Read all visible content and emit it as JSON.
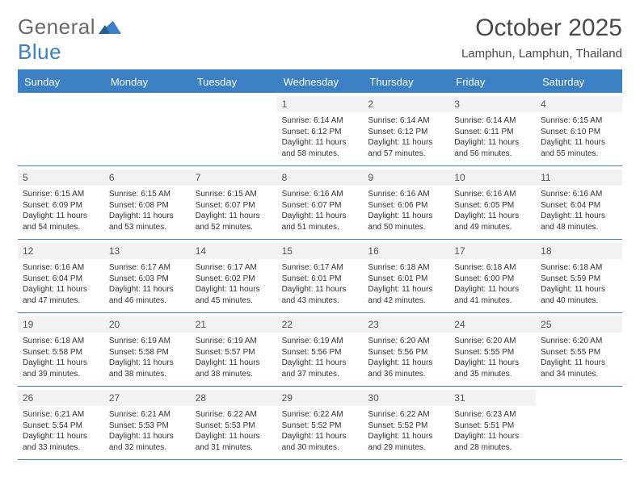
{
  "logo": {
    "word1": "General",
    "word2": "Blue"
  },
  "title": "October 2025",
  "subtitle": "Lamphun, Lamphun, Thailand",
  "colors": {
    "accent": "#3b7fc4",
    "row_alt": "#f2f2f2",
    "text": "#333333"
  },
  "day_headers": [
    "Sunday",
    "Monday",
    "Tuesday",
    "Wednesday",
    "Thursday",
    "Friday",
    "Saturday"
  ],
  "weeks": [
    [
      {
        "n": "",
        "sr": "",
        "ss": "",
        "dl": ""
      },
      {
        "n": "",
        "sr": "",
        "ss": "",
        "dl": ""
      },
      {
        "n": "",
        "sr": "",
        "ss": "",
        "dl": ""
      },
      {
        "n": "1",
        "sr": "6:14 AM",
        "ss": "6:12 PM",
        "dl": "11 hours and 58 minutes."
      },
      {
        "n": "2",
        "sr": "6:14 AM",
        "ss": "6:12 PM",
        "dl": "11 hours and 57 minutes."
      },
      {
        "n": "3",
        "sr": "6:14 AM",
        "ss": "6:11 PM",
        "dl": "11 hours and 56 minutes."
      },
      {
        "n": "4",
        "sr": "6:15 AM",
        "ss": "6:10 PM",
        "dl": "11 hours and 55 minutes."
      }
    ],
    [
      {
        "n": "5",
        "sr": "6:15 AM",
        "ss": "6:09 PM",
        "dl": "11 hours and 54 minutes."
      },
      {
        "n": "6",
        "sr": "6:15 AM",
        "ss": "6:08 PM",
        "dl": "11 hours and 53 minutes."
      },
      {
        "n": "7",
        "sr": "6:15 AM",
        "ss": "6:07 PM",
        "dl": "11 hours and 52 minutes."
      },
      {
        "n": "8",
        "sr": "6:16 AM",
        "ss": "6:07 PM",
        "dl": "11 hours and 51 minutes."
      },
      {
        "n": "9",
        "sr": "6:16 AM",
        "ss": "6:06 PM",
        "dl": "11 hours and 50 minutes."
      },
      {
        "n": "10",
        "sr": "6:16 AM",
        "ss": "6:05 PM",
        "dl": "11 hours and 49 minutes."
      },
      {
        "n": "11",
        "sr": "6:16 AM",
        "ss": "6:04 PM",
        "dl": "11 hours and 48 minutes."
      }
    ],
    [
      {
        "n": "12",
        "sr": "6:16 AM",
        "ss": "6:04 PM",
        "dl": "11 hours and 47 minutes."
      },
      {
        "n": "13",
        "sr": "6:17 AM",
        "ss": "6:03 PM",
        "dl": "11 hours and 46 minutes."
      },
      {
        "n": "14",
        "sr": "6:17 AM",
        "ss": "6:02 PM",
        "dl": "11 hours and 45 minutes."
      },
      {
        "n": "15",
        "sr": "6:17 AM",
        "ss": "6:01 PM",
        "dl": "11 hours and 43 minutes."
      },
      {
        "n": "16",
        "sr": "6:18 AM",
        "ss": "6:01 PM",
        "dl": "11 hours and 42 minutes."
      },
      {
        "n": "17",
        "sr": "6:18 AM",
        "ss": "6:00 PM",
        "dl": "11 hours and 41 minutes."
      },
      {
        "n": "18",
        "sr": "6:18 AM",
        "ss": "5:59 PM",
        "dl": "11 hours and 40 minutes."
      }
    ],
    [
      {
        "n": "19",
        "sr": "6:18 AM",
        "ss": "5:58 PM",
        "dl": "11 hours and 39 minutes."
      },
      {
        "n": "20",
        "sr": "6:19 AM",
        "ss": "5:58 PM",
        "dl": "11 hours and 38 minutes."
      },
      {
        "n": "21",
        "sr": "6:19 AM",
        "ss": "5:57 PM",
        "dl": "11 hours and 38 minutes."
      },
      {
        "n": "22",
        "sr": "6:19 AM",
        "ss": "5:56 PM",
        "dl": "11 hours and 37 minutes."
      },
      {
        "n": "23",
        "sr": "6:20 AM",
        "ss": "5:56 PM",
        "dl": "11 hours and 36 minutes."
      },
      {
        "n": "24",
        "sr": "6:20 AM",
        "ss": "5:55 PM",
        "dl": "11 hours and 35 minutes."
      },
      {
        "n": "25",
        "sr": "6:20 AM",
        "ss": "5:55 PM",
        "dl": "11 hours and 34 minutes."
      }
    ],
    [
      {
        "n": "26",
        "sr": "6:21 AM",
        "ss": "5:54 PM",
        "dl": "11 hours and 33 minutes."
      },
      {
        "n": "27",
        "sr": "6:21 AM",
        "ss": "5:53 PM",
        "dl": "11 hours and 32 minutes."
      },
      {
        "n": "28",
        "sr": "6:22 AM",
        "ss": "5:53 PM",
        "dl": "11 hours and 31 minutes."
      },
      {
        "n": "29",
        "sr": "6:22 AM",
        "ss": "5:52 PM",
        "dl": "11 hours and 30 minutes."
      },
      {
        "n": "30",
        "sr": "6:22 AM",
        "ss": "5:52 PM",
        "dl": "11 hours and 29 minutes."
      },
      {
        "n": "31",
        "sr": "6:23 AM",
        "ss": "5:51 PM",
        "dl": "11 hours and 28 minutes."
      },
      {
        "n": "",
        "sr": "",
        "ss": "",
        "dl": ""
      }
    ]
  ],
  "labels": {
    "sunrise": "Sunrise:",
    "sunset": "Sunset:",
    "daylight": "Daylight:"
  }
}
